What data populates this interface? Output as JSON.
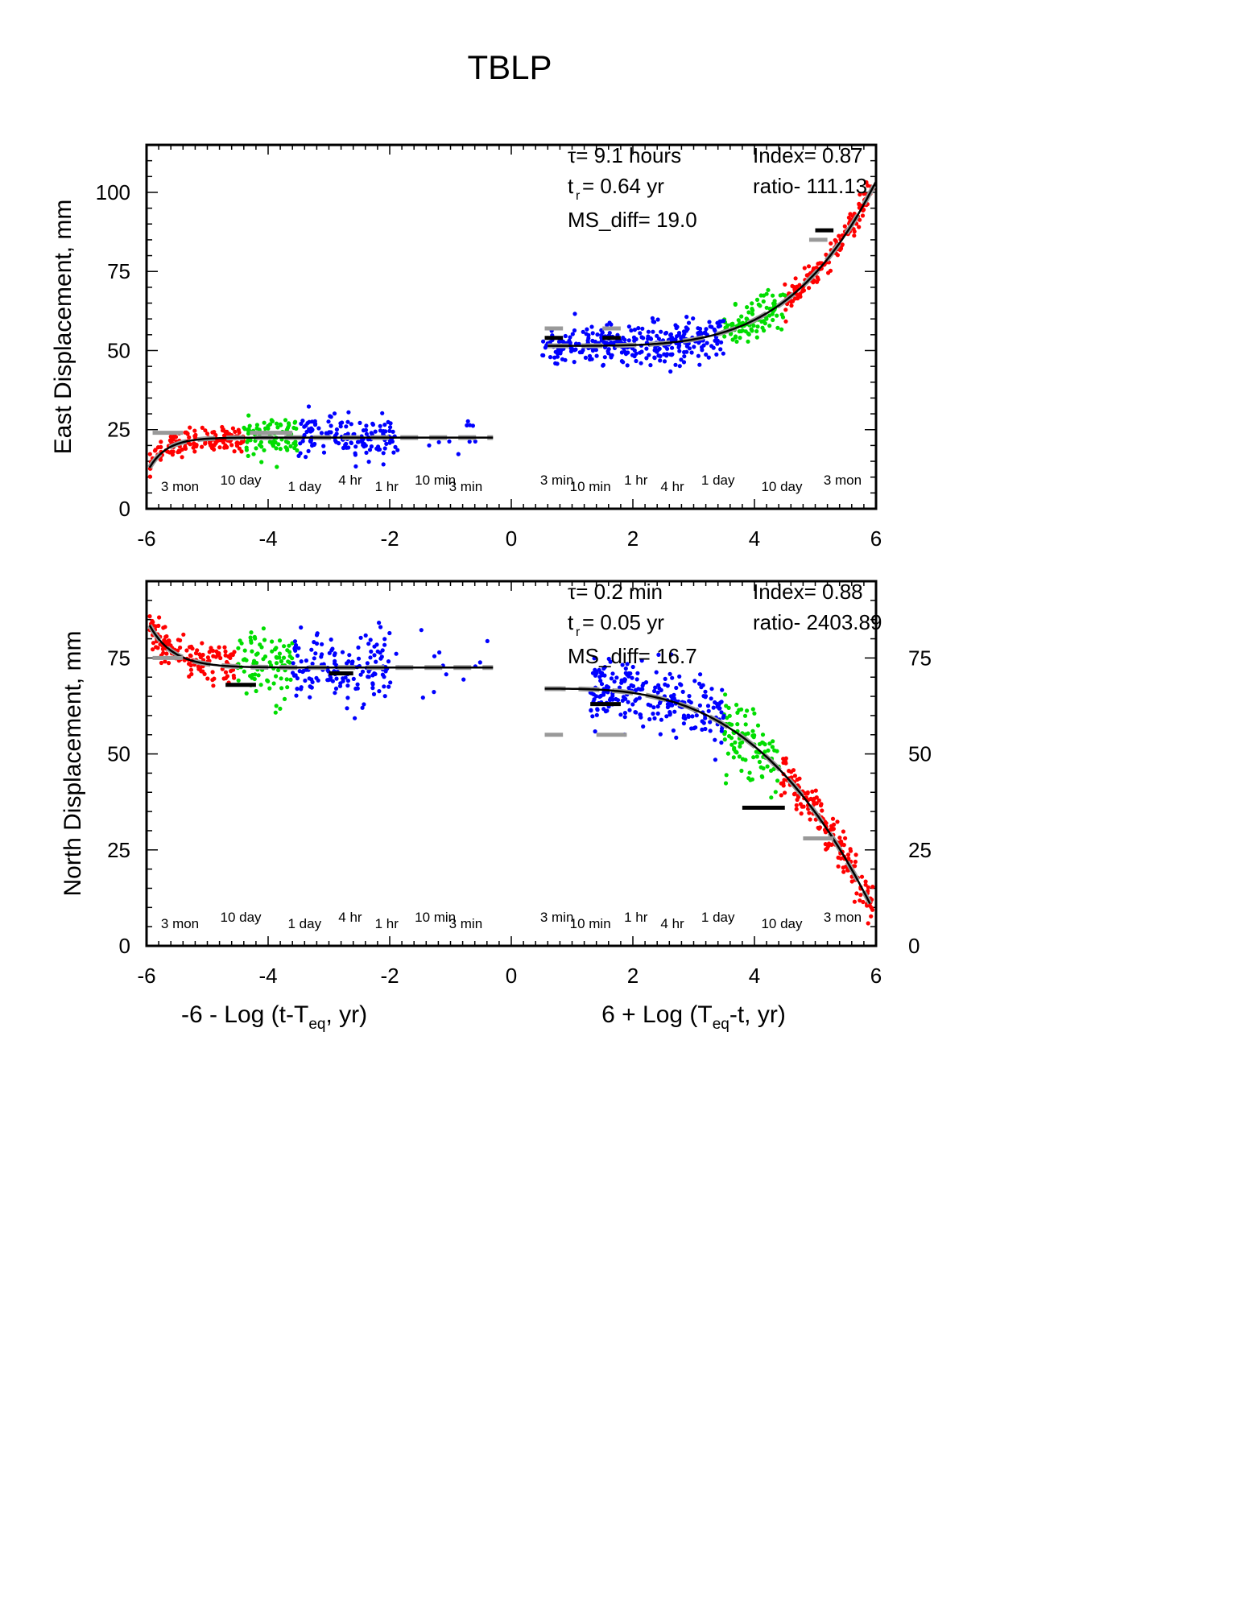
{
  "title": "TBLP",
  "chart_data": [
    {
      "type": "scatter",
      "panel": "top",
      "ylabel": "East Displacement, mm",
      "xlim": [
        -6,
        6
      ],
      "ylim": [
        0,
        115
      ],
      "xticks": [
        -6,
        -4,
        -2,
        0,
        2,
        4,
        6
      ],
      "yticks_left": [
        0,
        25,
        50,
        75,
        100
      ],
      "yticks_right": [],
      "grid": false,
      "legend": "none",
      "time_labels": [
        {
          "text": "3 mon",
          "x": -5.45
        },
        {
          "text": "10 day",
          "x": -4.45
        },
        {
          "text": "1 day",
          "x": -3.4
        },
        {
          "text": "4 hr",
          "x": -2.65
        },
        {
          "text": "1 hr",
          "x": -2.05
        },
        {
          "text": "10 min",
          "x": -1.25
        },
        {
          "text": "3 min",
          "x": -0.75
        },
        {
          "text": "3 min",
          "x": 0.75
        },
        {
          "text": "10 min",
          "x": 1.3
        },
        {
          "text": "1 hr",
          "x": 2.05
        },
        {
          "text": "4 hr",
          "x": 2.65
        },
        {
          "text": "1 day",
          "x": 3.4
        },
        {
          "text": "10 day",
          "x": 4.45
        },
        {
          "text": "3 mon",
          "x": 5.45
        }
      ],
      "annotations": {
        "tau": "τ= 9.1 hours",
        "tr_sym": "t",
        "tr_sub": "r",
        "tr_val": "= 0.64 yr",
        "ms_diff": "MS_diff= 19.0",
        "index": "Index= 0.87",
        "ratio": "ratio- 111.13"
      },
      "fit_left": {
        "x0": -5.95,
        "x1": -0.3,
        "base": 22.5,
        "amp": -9.5,
        "k": 3.4
      },
      "fit_right": {
        "x0": 0.6,
        "x1": 6.0,
        "base": 51.5,
        "amp": 52,
        "k": 4.0,
        "dir": 1
      },
      "series": [
        {
          "color": "#ff0000",
          "left": [
            -5.95,
            -4.4
          ],
          "right": [
            4.5,
            5.95
          ]
        },
        {
          "color": "#00dd00",
          "left": [
            -4.4,
            -3.5
          ],
          "right": [
            3.5,
            4.5
          ]
        },
        {
          "color": "#0000ff",
          "left": [
            -3.5,
            -1.9
          ],
          "right": [
            0.5,
            3.5
          ]
        }
      ],
      "left_extra_blue_range": [
        -1.9,
        -0.3
      ],
      "left_extra_blue_count": 12,
      "dashes": [
        {
          "x": [
            0.55,
            0.85
          ],
          "y": 57,
          "color": "#999999"
        },
        {
          "x": [
            0.55,
            0.85
          ],
          "y": 54,
          "color": "#000000"
        },
        {
          "x": [
            1.5,
            1.8
          ],
          "y": 57,
          "color": "#999999"
        },
        {
          "x": [
            1.5,
            1.8
          ],
          "y": 54,
          "color": "#000000"
        },
        {
          "x": [
            4.9,
            5.2
          ],
          "y": 85,
          "color": "#999999"
        },
        {
          "x": [
            5.0,
            5.3
          ],
          "y": 88,
          "color": "#000000"
        },
        {
          "x": [
            -5.9,
            -5.4
          ],
          "y": 24,
          "color": "#999999"
        },
        {
          "x": [
            -4.3,
            -3.6
          ],
          "y": 24,
          "color": "#999999"
        }
      ]
    },
    {
      "type": "scatter",
      "panel": "bottom",
      "ylabel": "North Displacement, mm",
      "xlabel_left_main": "-6 - Log (t-T",
      "xlabel_left_sub": "eq",
      "xlabel_left_end": ", yr)",
      "xlabel_right_main": "6 + Log (T",
      "xlabel_right_sub": "eq",
      "xlabel_right_end": "-t, yr)",
      "xlim": [
        -6,
        6
      ],
      "ylim": [
        0,
        95
      ],
      "xticks": [
        -6,
        -4,
        -2,
        0,
        2,
        4,
        6
      ],
      "yticks_left": [
        0,
        25,
        50,
        75
      ],
      "yticks_right": [
        0,
        25,
        50,
        75
      ],
      "grid": false,
      "legend": "none",
      "time_labels": [
        {
          "text": "3 mon",
          "x": -5.45
        },
        {
          "text": "10 day",
          "x": -4.45
        },
        {
          "text": "1 day",
          "x": -3.4
        },
        {
          "text": "4 hr",
          "x": -2.65
        },
        {
          "text": "1 hr",
          "x": -2.05
        },
        {
          "text": "10 min",
          "x": -1.25
        },
        {
          "text": "3 min",
          "x": -0.75
        },
        {
          "text": "3 min",
          "x": 0.75
        },
        {
          "text": "10 min",
          "x": 1.3
        },
        {
          "text": "1 hr",
          "x": 2.05
        },
        {
          "text": "4 hr",
          "x": 2.65
        },
        {
          "text": "1 day",
          "x": 3.4
        },
        {
          "text": "10 day",
          "x": 4.45
        },
        {
          "text": "3 mon",
          "x": 5.45
        }
      ],
      "annotations": {
        "tau": "τ= 0.2 min",
        "tr_sym": "t",
        "tr_sub": "r",
        "tr_val": "= 0.05 yr",
        "ms_diff": "MS_diff= 16.7",
        "index": "Index= 0.88",
        "ratio": "ratio- 2403.89"
      },
      "fit_left": {
        "x0": -5.95,
        "x1": -0.3,
        "base": 72.5,
        "amp": 11,
        "k": 2.6
      },
      "fit_right": {
        "x0": 0.55,
        "x1": 5.9,
        "base": 67,
        "amp": -56,
        "k": 3.0,
        "dir": 1
      },
      "series": [
        {
          "color": "#ff0000",
          "left": [
            -5.95,
            -4.5
          ],
          "right": [
            4.4,
            5.95
          ]
        },
        {
          "color": "#00dd00",
          "left": [
            -4.5,
            -3.6
          ],
          "right": [
            3.5,
            4.4
          ]
        },
        {
          "color": "#0000ff",
          "left": [
            -3.6,
            -2.0
          ],
          "right": [
            1.3,
            3.5
          ]
        }
      ],
      "left_extra_blue_range": [
        -2.0,
        -0.3
      ],
      "left_extra_blue_count": 14,
      "dashes": [
        {
          "x": [
            0.55,
            0.85
          ],
          "y": 55,
          "color": "#999999"
        },
        {
          "x": [
            1.4,
            1.9
          ],
          "y": 55,
          "color": "#999999"
        },
        {
          "x": [
            -4.7,
            -4.2
          ],
          "y": 68,
          "color": "#000000"
        },
        {
          "x": [
            -3.0,
            -2.6
          ],
          "y": 71,
          "color": "#000000"
        },
        {
          "x": [
            1.3,
            1.8
          ],
          "y": 63,
          "color": "#000000"
        },
        {
          "x": [
            3.8,
            4.5
          ],
          "y": 36,
          "color": "#000000"
        },
        {
          "x": [
            4.8,
            5.3
          ],
          "y": 28,
          "color": "#999999"
        },
        {
          "x": [
            -5.9,
            -5.4
          ],
          "y": 75,
          "color": "#999999"
        }
      ]
    }
  ]
}
